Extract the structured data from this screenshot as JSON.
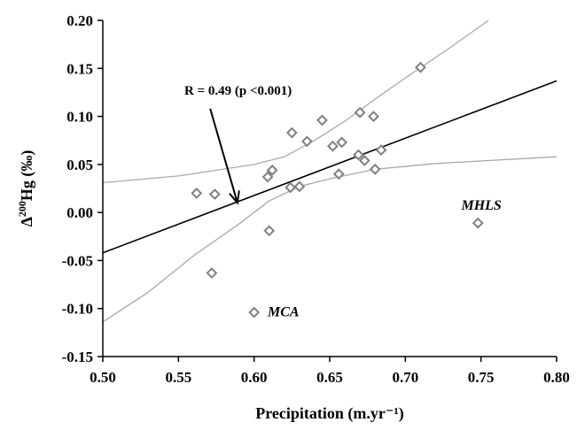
{
  "chart_data": {
    "type": "scatter",
    "xlabel": "Precipitation (m.yr⁻¹)",
    "ylabel_prefix": "Δ",
    "ylabel_sup": "200",
    "ylabel_suffix": "Hg (‰)",
    "xlim": [
      0.5,
      0.8
    ],
    "ylim": [
      -0.15,
      0.2
    ],
    "x_ticks": [
      "0.50",
      "0.55",
      "0.60",
      "0.65",
      "0.70",
      "0.75",
      "0.80"
    ],
    "y_ticks": [
      "-0.15",
      "-0.10",
      "-0.05",
      "0.00",
      "0.05",
      "0.10",
      "0.15",
      "0.20"
    ],
    "grid": false,
    "points": [
      {
        "x": 0.562,
        "y": 0.02
      },
      {
        "x": 0.574,
        "y": 0.019
      },
      {
        "x": 0.572,
        "y": -0.063
      },
      {
        "x": 0.6,
        "y": -0.104
      },
      {
        "x": 0.609,
        "y": 0.037
      },
      {
        "x": 0.612,
        "y": 0.044
      },
      {
        "x": 0.61,
        "y": -0.019
      },
      {
        "x": 0.624,
        "y": 0.026
      },
      {
        "x": 0.625,
        "y": 0.083
      },
      {
        "x": 0.63,
        "y": 0.027
      },
      {
        "x": 0.635,
        "y": 0.074
      },
      {
        "x": 0.645,
        "y": 0.096
      },
      {
        "x": 0.652,
        "y": 0.069
      },
      {
        "x": 0.656,
        "y": 0.04
      },
      {
        "x": 0.658,
        "y": 0.073
      },
      {
        "x": 0.669,
        "y": 0.06
      },
      {
        "x": 0.67,
        "y": 0.104
      },
      {
        "x": 0.673,
        "y": 0.054
      },
      {
        "x": 0.679,
        "y": 0.1
      },
      {
        "x": 0.68,
        "y": 0.045
      },
      {
        "x": 0.684,
        "y": 0.065
      },
      {
        "x": 0.71,
        "y": 0.151
      },
      {
        "x": 0.748,
        "y": -0.011
      }
    ],
    "regression_line": [
      [
        0.5,
        -0.042
      ],
      [
        0.8,
        0.137
      ]
    ],
    "confidence_upper": [
      [
        0.5,
        0.031
      ],
      [
        0.55,
        0.038
      ],
      [
        0.6,
        0.05
      ],
      [
        0.62,
        0.058
      ],
      [
        0.64,
        0.075
      ],
      [
        0.66,
        0.095
      ],
      [
        0.68,
        0.118
      ],
      [
        0.7,
        0.14
      ],
      [
        0.73,
        0.172
      ],
      [
        0.755,
        0.2
      ]
    ],
    "confidence_lower": [
      [
        0.5,
        -0.114
      ],
      [
        0.53,
        -0.083
      ],
      [
        0.56,
        -0.045
      ],
      [
        0.59,
        -0.012
      ],
      [
        0.61,
        0.012
      ],
      [
        0.63,
        0.027
      ],
      [
        0.65,
        0.035
      ],
      [
        0.68,
        0.045
      ],
      [
        0.72,
        0.051
      ],
      [
        0.8,
        0.058
      ]
    ],
    "annotation": {
      "text": "R = 0.49 (p <0.001)",
      "arrow_from": [
        0.571,
        0.108
      ],
      "arrow_to": [
        0.589,
        0.01
      ]
    },
    "point_labels": [
      {
        "text": "MCA",
        "x": 0.609,
        "y": -0.108
      },
      {
        "text": "MHLS",
        "x": 0.737,
        "y": 0.003
      }
    ],
    "colors": {
      "marker": "#808080",
      "regression": "#000000",
      "confidence": "#a8a8a8"
    }
  }
}
